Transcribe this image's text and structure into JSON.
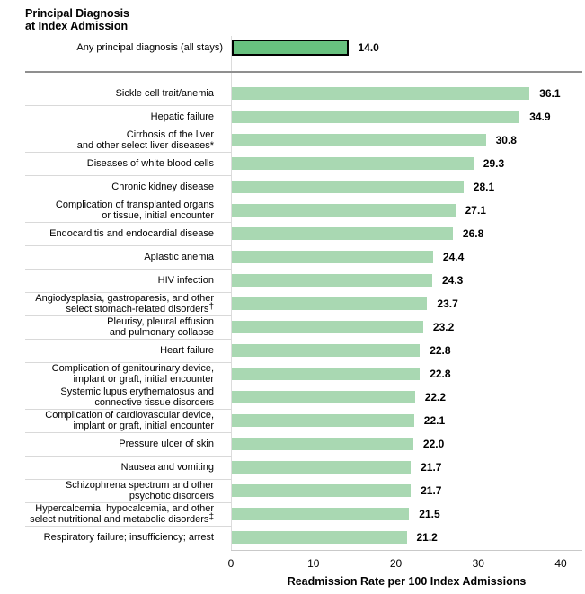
{
  "title": {
    "line1": "Principal Diagnosis",
    "line2": "at Index Admission"
  },
  "chart_data": {
    "type": "bar",
    "orientation": "horizontal",
    "title": "Principal Diagnosis at Index Admission",
    "xlabel": "Readmission Rate per 100 Index Admissions",
    "xlim": [
      0,
      40
    ],
    "xticks": [
      0,
      10,
      20,
      30,
      40
    ],
    "grid": false,
    "legend": "none",
    "value_labels": "end-of-bar, one decimal",
    "reference_bar": {
      "label": "Any principal diagnosis (all stays)",
      "value": 14.0
    },
    "rows": [
      {
        "label": [
          "Sickle cell trait/anemia"
        ],
        "value": 36.1
      },
      {
        "label": [
          "Hepatic failure"
        ],
        "value": 34.9
      },
      {
        "label": [
          "Cirrhosis of the liver",
          "and other select liver diseases*"
        ],
        "value": 30.8
      },
      {
        "label": [
          "Diseases of white blood cells"
        ],
        "value": 29.3
      },
      {
        "label": [
          "Chronic kidney disease"
        ],
        "value": 28.1
      },
      {
        "label": [
          "Complication of transplanted organs",
          "or tissue, initial encounter"
        ],
        "value": 27.1
      },
      {
        "label": [
          "Endocarditis and endocardial disease"
        ],
        "value": 26.8
      },
      {
        "label": [
          "Aplastic anemia"
        ],
        "value": 24.4
      },
      {
        "label": [
          "HIV infection"
        ],
        "value": 24.3
      },
      {
        "label": [
          "Angiodysplasia, gastroparesis, and other",
          "select stomach-related disorders†"
        ],
        "value": 23.7
      },
      {
        "label": [
          "Pleurisy, pleural effusion",
          "and pulmonary collapse"
        ],
        "value": 23.2
      },
      {
        "label": [
          "Heart failure"
        ],
        "value": 22.8
      },
      {
        "label": [
          "Complication of genitourinary device,",
          "implant or graft, initial encounter"
        ],
        "value": 22.8
      },
      {
        "label": [
          "Systemic lupus erythematosus and",
          "connective tissue disorders"
        ],
        "value": 22.2
      },
      {
        "label": [
          "Complication of cardiovascular device,",
          "implant or graft, initial encounter"
        ],
        "value": 22.1
      },
      {
        "label": [
          "Pressure ulcer of skin"
        ],
        "value": 22.0
      },
      {
        "label": [
          "Nausea and vomiting"
        ],
        "value": 21.7
      },
      {
        "label": [
          "Schizophrena spectrum and other",
          "psychotic disorders"
        ],
        "value": 21.7
      },
      {
        "label": [
          "Hypercalcemia, hypocalcemia, and other",
          "select nutritional and metabolic disorders‡"
        ],
        "value": 21.5
      },
      {
        "label": [
          "Respiratory failure; insufficiency; arrest"
        ],
        "value": 21.2
      }
    ],
    "colors": {
      "bar_fill": "#a9d8b2",
      "reference_fill": "#68c17f",
      "reference_border": "#000000",
      "row_separator": "#d9d9d9",
      "section_divider": "#8f8f8f",
      "axis_line": "#c9c9c9",
      "text": "#000000"
    }
  }
}
